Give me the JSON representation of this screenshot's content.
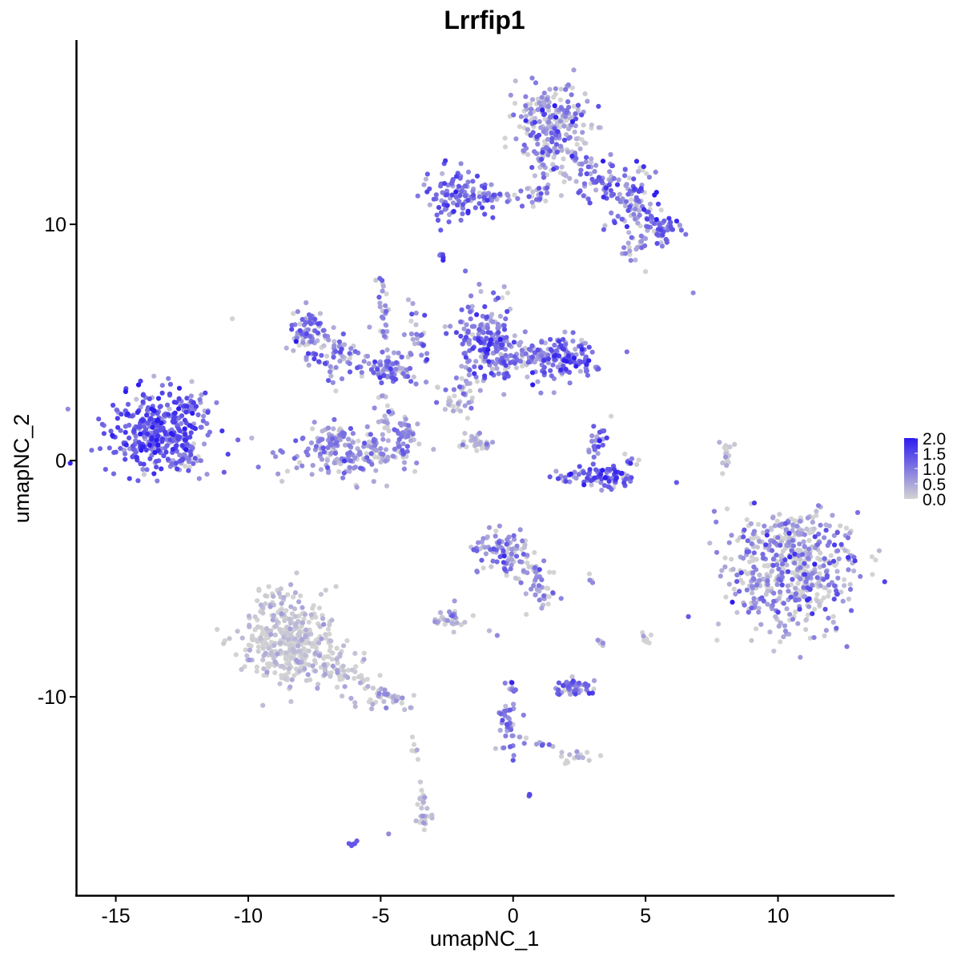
{
  "chart_data": {
    "type": "scatter",
    "title": "Lrrfip1",
    "xlabel": "umapNC_1",
    "ylabel": "umapNC_2",
    "xlim": [
      -16.5,
      14.4
    ],
    "ylim": [
      -18.4,
      17.8
    ],
    "x_ticks": [
      {
        "value": -15,
        "label": "-15"
      },
      {
        "value": -10,
        "label": "-10"
      },
      {
        "value": -5,
        "label": "-5"
      },
      {
        "value": 0,
        "label": "0"
      },
      {
        "value": 5,
        "label": "5"
      },
      {
        "value": 10,
        "label": "10"
      }
    ],
    "y_ticks": [
      {
        "value": 10,
        "label": "10"
      },
      {
        "value": 0,
        "label": "0"
      },
      {
        "value": -10,
        "label": "-10"
      }
    ],
    "grid": false,
    "legend": {
      "position": "right",
      "type": "colorbar",
      "min": 0,
      "max": 2.0,
      "breaks": [
        {
          "value": 2.0,
          "label": "2.0"
        },
        {
          "value": 1.5,
          "label": "1.5"
        },
        {
          "value": 1.0,
          "label": "1.0"
        },
        {
          "value": 0.5,
          "label": "0.5"
        },
        {
          "value": 0.0,
          "label": "0.0"
        }
      ],
      "low_color": "#d3d3d3",
      "high_color": "#2d1bf0"
    },
    "clusters": [
      {
        "cx": -13.5,
        "cy": 1.2,
        "sx": 0.95,
        "sy": 0.85,
        "n": 340,
        "expr": 1.35,
        "spread": 0.35
      },
      {
        "cx": -11.8,
        "cy": 2.2,
        "sx": 0.25,
        "sy": 0.45,
        "n": 12,
        "expr": 0.9,
        "spread": 0.3
      },
      {
        "cx": -12.3,
        "cy": 0.0,
        "sx": 0.3,
        "sy": 0.2,
        "n": 20,
        "expr": 0.9,
        "spread": 0.3
      },
      {
        "cx": -7.7,
        "cy": 5.5,
        "sx": 0.45,
        "sy": 0.5,
        "n": 70,
        "expr": 1.0,
        "spread": 0.4
      },
      {
        "cx": -6.6,
        "cy": 4.4,
        "sx": 0.6,
        "sy": 0.45,
        "n": 60,
        "expr": 0.8,
        "spread": 0.45
      },
      {
        "cx": -4.7,
        "cy": 3.8,
        "sx": 0.5,
        "sy": 0.35,
        "n": 70,
        "expr": 1.1,
        "spread": 0.4
      },
      {
        "cx": -4.9,
        "cy": 6.3,
        "sx": 0.2,
        "sy": 0.8,
        "n": 16,
        "expr": 0.6,
        "spread": 0.4
      },
      {
        "cx": -3.7,
        "cy": 4.8,
        "sx": 0.3,
        "sy": 0.9,
        "n": 16,
        "expr": 0.7,
        "spread": 0.4
      },
      {
        "cx": -4.8,
        "cy": 2.0,
        "sx": 0.2,
        "sy": 0.5,
        "n": 18,
        "expr": 0.4,
        "spread": 0.4
      },
      {
        "cx": -6.1,
        "cy": 0.3,
        "sx": 1.2,
        "sy": 0.55,
        "n": 170,
        "expr": 0.7,
        "spread": 0.35
      },
      {
        "cx": -6.8,
        "cy": 1.0,
        "sx": 0.4,
        "sy": 0.4,
        "n": 40,
        "expr": 0.6,
        "spread": 0.35
      },
      {
        "cx": -4.2,
        "cy": 1.0,
        "sx": 0.3,
        "sy": 0.5,
        "n": 35,
        "expr": 0.8,
        "spread": 0.35
      },
      {
        "cx": -1.0,
        "cy": 5.2,
        "sx": 0.6,
        "sy": 0.9,
        "n": 170,
        "expr": 1.05,
        "spread": 0.45
      },
      {
        "cx": 0.6,
        "cy": 4.4,
        "sx": 0.8,
        "sy": 0.4,
        "n": 90,
        "expr": 0.85,
        "spread": 0.45
      },
      {
        "cx": 2.0,
        "cy": 4.2,
        "sx": 0.6,
        "sy": 0.5,
        "n": 110,
        "expr": 1.3,
        "spread": 0.4
      },
      {
        "cx": -2.0,
        "cy": 3.2,
        "sx": 0.5,
        "sy": 0.4,
        "n": 30,
        "expr": 0.6,
        "spread": 0.45
      },
      {
        "cx": -2.2,
        "cy": 2.4,
        "sx": 0.2,
        "sy": 0.3,
        "n": 12,
        "expr": 0.3,
        "spread": 0.3
      },
      {
        "cx": -2.2,
        "cy": 11.3,
        "sx": 0.6,
        "sy": 0.6,
        "n": 90,
        "expr": 1.25,
        "spread": 0.35
      },
      {
        "cx": -0.5,
        "cy": 11.1,
        "sx": 0.5,
        "sy": 0.2,
        "n": 18,
        "expr": 0.9,
        "spread": 0.3
      },
      {
        "cx": 1.0,
        "cy": 11.2,
        "sx": 0.4,
        "sy": 0.3,
        "n": 20,
        "expr": 0.7,
        "spread": 0.4
      },
      {
        "cx": 1.5,
        "cy": 14.3,
        "sx": 0.7,
        "sy": 0.8,
        "n": 220,
        "expr": 0.75,
        "spread": 0.5
      },
      {
        "cx": 1.2,
        "cy": 12.8,
        "sx": 0.4,
        "sy": 0.5,
        "n": 25,
        "expr": 0.6,
        "spread": 0.45
      },
      {
        "cx": 3.4,
        "cy": 12.0,
        "sx": 0.9,
        "sy": 0.5,
        "n": 70,
        "expr": 0.95,
        "spread": 0.45
      },
      {
        "cx": 4.8,
        "cy": 11.5,
        "sx": 0.5,
        "sy": 0.4,
        "n": 30,
        "expr": 0.8,
        "spread": 0.45
      },
      {
        "cx": 4.5,
        "cy": 10.2,
        "sx": 0.6,
        "sy": 0.3,
        "n": 25,
        "expr": 0.9,
        "spread": 0.45
      },
      {
        "cx": 5.7,
        "cy": 9.7,
        "sx": 0.35,
        "sy": 0.35,
        "n": 40,
        "expr": 1.15,
        "spread": 0.4
      },
      {
        "cx": 4.6,
        "cy": 9.0,
        "sx": 0.3,
        "sy": 0.25,
        "n": 20,
        "expr": 0.6,
        "spread": 0.4
      },
      {
        "cx": -2.7,
        "cy": 8.6,
        "sx": 0.1,
        "sy": 0.1,
        "n": 5,
        "expr": 1.1,
        "spread": 0.3
      },
      {
        "cx": 3.2,
        "cy": 0.6,
        "sx": 0.2,
        "sy": 0.6,
        "n": 30,
        "expr": 1.0,
        "spread": 0.45
      },
      {
        "cx": 3.6,
        "cy": -0.7,
        "sx": 0.6,
        "sy": 0.25,
        "n": 60,
        "expr": 1.35,
        "spread": 0.4
      },
      {
        "cx": 2.3,
        "cy": -0.6,
        "sx": 0.5,
        "sy": 0.2,
        "n": 25,
        "expr": 1.0,
        "spread": 0.4
      },
      {
        "cx": 4.4,
        "cy": 0.0,
        "sx": 0.15,
        "sy": 0.3,
        "n": 10,
        "expr": 0.9,
        "spread": 0.4
      },
      {
        "cx": -1.7,
        "cy": 1.0,
        "sx": 0.3,
        "sy": 0.2,
        "n": 6,
        "expr": 0.2,
        "spread": 0.3
      },
      {
        "cx": -1.2,
        "cy": 0.6,
        "sx": 0.2,
        "sy": 0.15,
        "n": 5,
        "expr": 0.2,
        "spread": 0.3
      },
      {
        "cx": 8.0,
        "cy": 0.3,
        "sx": 0.1,
        "sy": 0.35,
        "n": 8,
        "expr": 0.1,
        "spread": 0.2
      },
      {
        "cx": 10.6,
        "cy": -4.8,
        "sx": 1.2,
        "sy": 1.2,
        "n": 480,
        "expr": 0.55,
        "spread": 0.55
      },
      {
        "cx": 10.3,
        "cy": -3.2,
        "sx": 0.8,
        "sy": 0.5,
        "n": 80,
        "expr": 0.45,
        "spread": 0.5
      },
      {
        "cx": -8.5,
        "cy": -7.8,
        "sx": 0.9,
        "sy": 0.85,
        "n": 350,
        "expr": 0.1,
        "spread": 0.2
      },
      {
        "cx": -8.8,
        "cy": -6.0,
        "sx": 0.4,
        "sy": 0.4,
        "n": 35,
        "expr": 0.15,
        "spread": 0.25
      },
      {
        "cx": -6.5,
        "cy": -9.0,
        "sx": 0.6,
        "sy": 0.35,
        "n": 35,
        "expr": 0.15,
        "spread": 0.25
      },
      {
        "cx": -4.8,
        "cy": -10.0,
        "sx": 0.6,
        "sy": 0.25,
        "n": 30,
        "expr": 0.3,
        "spread": 0.35
      },
      {
        "cx": -0.4,
        "cy": -3.8,
        "sx": 0.5,
        "sy": 0.5,
        "n": 80,
        "expr": 0.7,
        "spread": 0.45
      },
      {
        "cx": 0.7,
        "cy": -4.6,
        "sx": 0.4,
        "sy": 0.4,
        "n": 30,
        "expr": 0.5,
        "spread": 0.45
      },
      {
        "cx": 1.0,
        "cy": -5.8,
        "sx": 0.3,
        "sy": 0.4,
        "n": 15,
        "expr": 0.5,
        "spread": 0.45
      },
      {
        "cx": -2.5,
        "cy": -6.8,
        "sx": 0.3,
        "sy": 0.2,
        "n": 22,
        "expr": 0.6,
        "spread": 0.4
      },
      {
        "cx": 2.3,
        "cy": -9.6,
        "sx": 0.4,
        "sy": 0.2,
        "n": 60,
        "expr": 1.0,
        "spread": 0.35
      },
      {
        "cx": -0.2,
        "cy": -11.2,
        "sx": 0.2,
        "sy": 0.7,
        "n": 30,
        "expr": 0.8,
        "spread": 0.4
      },
      {
        "cx": 2.4,
        "cy": -12.6,
        "sx": 0.3,
        "sy": 0.15,
        "n": 12,
        "expr": 0.3,
        "spread": 0.3
      },
      {
        "cx": -3.4,
        "cy": -14.9,
        "sx": 0.15,
        "sy": 0.5,
        "n": 25,
        "expr": 0.25,
        "spread": 0.3
      },
      {
        "cx": 5.0,
        "cy": -7.5,
        "sx": 0.15,
        "sy": 0.15,
        "n": 10,
        "expr": 0.2,
        "spread": 0.3
      },
      {
        "cx": 3.3,
        "cy": -7.7,
        "sx": 0.1,
        "sy": 0.1,
        "n": 5,
        "expr": 0.6,
        "spread": 0.3
      },
      {
        "cx": 2.9,
        "cy": -5.0,
        "sx": 0.1,
        "sy": 0.1,
        "n": 4,
        "expr": 0.5,
        "spread": 0.3
      },
      {
        "cx": -6.0,
        "cy": -16.2,
        "sx": 0.1,
        "sy": 0.05,
        "n": 4,
        "expr": 1.2,
        "spread": 0.2
      },
      {
        "cx": 0.6,
        "cy": -14.1,
        "sx": 0.05,
        "sy": 0.05,
        "n": 2,
        "expr": 1.2,
        "spread": 0.2
      }
    ],
    "trails": [
      {
        "x0": -12.8,
        "y0": 1.6,
        "x1": -11.6,
        "y1": 2.8,
        "n": 12,
        "expr": 1.0
      },
      {
        "x0": -5.0,
        "y0": 7.6,
        "x1": -4.6,
        "y1": 3.8,
        "n": 16,
        "expr": 0.6
      },
      {
        "x0": -4.0,
        "y0": 7.0,
        "x1": -3.2,
        "y1": 4.0,
        "n": 14,
        "expr": 0.7
      },
      {
        "x0": -1.5,
        "y0": 0.8,
        "x1": -1.1,
        "y1": 0.8,
        "n": 4,
        "expr": 0.2
      },
      {
        "x0": -1.2,
        "y0": 0.6,
        "x1": -0.8,
        "y1": 0.7,
        "n": 3,
        "expr": 0.2
      },
      {
        "x0": -1.8,
        "y0": 1.1,
        "x1": -0.9,
        "y1": 0.6,
        "n": 6,
        "expr": 0.2
      },
      {
        "x0": -2.5,
        "y0": 11.1,
        "x1": -0.7,
        "y1": 11.2,
        "n": 15,
        "expr": 0.9
      },
      {
        "x0": 1.0,
        "y0": 13.0,
        "x1": 1.3,
        "y1": 11.4,
        "n": 8,
        "expr": 0.7
      },
      {
        "x0": 2.2,
        "y0": 13.0,
        "x1": 5.0,
        "y1": 10.0,
        "n": 30,
        "expr": 0.85
      },
      {
        "x0": 4.5,
        "y0": 11.2,
        "x1": 5.8,
        "y1": 9.6,
        "n": 15,
        "expr": 1.0
      },
      {
        "x0": -1.6,
        "y0": 0.9,
        "x1": -1.0,
        "y1": 0.5,
        "n": 5,
        "expr": 0.2
      },
      {
        "x0": -2.8,
        "y0": 0.4,
        "x1": -1.2,
        "y1": 0.7,
        "n": 5,
        "expr": 0.2
      },
      {
        "x0": 7.9,
        "y0": -0.6,
        "x1": 8.3,
        "y1": 0.9,
        "n": 8,
        "expr": 0.1
      },
      {
        "x0": 0.0,
        "y0": -9.2,
        "x1": -0.3,
        "y1": -12.0,
        "n": 15,
        "expr": 0.8
      },
      {
        "x0": -0.1,
        "y0": -11.6,
        "x1": 2.4,
        "y1": -12.5,
        "n": 15,
        "expr": 0.4
      },
      {
        "x0": -7.5,
        "y0": -8.5,
        "x1": -4.3,
        "y1": -10.2,
        "n": 30,
        "expr": 0.2
      },
      {
        "x0": -3.8,
        "y0": -11.7,
        "x1": -3.4,
        "y1": -14.5,
        "n": 8,
        "expr": 0.3
      },
      {
        "x0": -2.0,
        "y0": -5.5,
        "x1": -2.5,
        "y1": -7.2,
        "n": 8,
        "expr": 0.5
      },
      {
        "x0": -1.1,
        "y0": -3.5,
        "x1": -1.4,
        "y1": -5.0,
        "n": 5,
        "expr": 0.5
      },
      {
        "x0": 0.7,
        "y0": -4.3,
        "x1": 1.3,
        "y1": -5.9,
        "n": 12,
        "expr": 0.5
      },
      {
        "x0": -1.6,
        "y0": 1.6,
        "x1": -1.8,
        "y1": 3.0,
        "n": 6,
        "expr": 0.4
      },
      {
        "x0": -12.5,
        "y0": 1.2,
        "x1": -12.0,
        "y1": -0.1,
        "n": 10,
        "expr": 0.9
      }
    ],
    "singletons": [
      {
        "x": -10.6,
        "y": 6.0,
        "expr": 0.0
      },
      {
        "x": 6.8,
        "y": 7.1,
        "expr": 0.8
      },
      {
        "x": 5.0,
        "y": 8.0,
        "expr": 0.0
      },
      {
        "x": 3.2,
        "y": -7.6,
        "expr": 0.7
      },
      {
        "x": -4.7,
        "y": -15.8,
        "expr": 0.8
      },
      {
        "x": 0.6,
        "y": -14.2,
        "expr": 1.2
      },
      {
        "x": -0.9,
        "y": -7.2,
        "expr": 0.3
      },
      {
        "x": -0.6,
        "y": -7.4,
        "expr": 0.8
      },
      {
        "x": -3.8,
        "y": -11.7,
        "expr": 0.0
      },
      {
        "x": -3.7,
        "y": -12.3,
        "expr": 0.0
      },
      {
        "x": 7.7,
        "y": -7.6,
        "expr": 0.0
      },
      {
        "x": 1.5,
        "y": -12.1,
        "expr": 0.3
      },
      {
        "x": -2.7,
        "y": 11.0,
        "expr": 0.6
      },
      {
        "x": -3.6,
        "y": 11.2,
        "expr": 1.0
      },
      {
        "x": -6.1,
        "y": -16.3,
        "expr": 1.3
      },
      {
        "x": -5.9,
        "y": -16.1,
        "expr": 1.3
      }
    ]
  }
}
